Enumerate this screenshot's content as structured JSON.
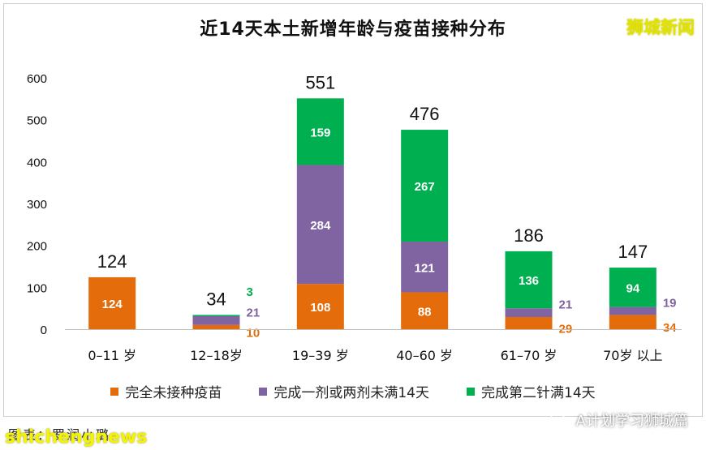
{
  "header": {
    "title": "近14天本土新增年龄与疫苗接种分布",
    "brand": "狮城新闻"
  },
  "footer": {
    "credit": "图表：罗润小璐",
    "watermark": "shichengnews",
    "account": "A计划学习狮城篇"
  },
  "colors": {
    "unvaccinated": "#e46c0a",
    "partial": "#8064a2",
    "full": "#00b050"
  },
  "chart_data": {
    "type": "bar",
    "stacked": true,
    "title": "近14天本土新增年龄与疫苗接种分布",
    "categories": [
      "0–11 岁",
      "12–18岁",
      "19–39 岁",
      "40–60 岁",
      "61–70 岁",
      "70岁 以上"
    ],
    "series": [
      {
        "name": "完全未接种疫苗",
        "color": "#e46c0a",
        "values": [
          124,
          10,
          108,
          88,
          29,
          34
        ]
      },
      {
        "name": "完成一剂或两剂未满14天",
        "color": "#8064a2",
        "values": [
          0,
          21,
          284,
          121,
          21,
          19
        ]
      },
      {
        "name": "完成第二针满14天",
        "color": "#00b050",
        "values": [
          0,
          3,
          159,
          267,
          136,
          94
        ]
      }
    ],
    "totals": [
      124,
      34,
      551,
      476,
      186,
      147
    ],
    "ylim": [
      0,
      600
    ],
    "yticks": [
      0,
      100,
      200,
      300,
      400,
      500,
      600
    ],
    "legend_position": "bottom",
    "grid": false
  }
}
